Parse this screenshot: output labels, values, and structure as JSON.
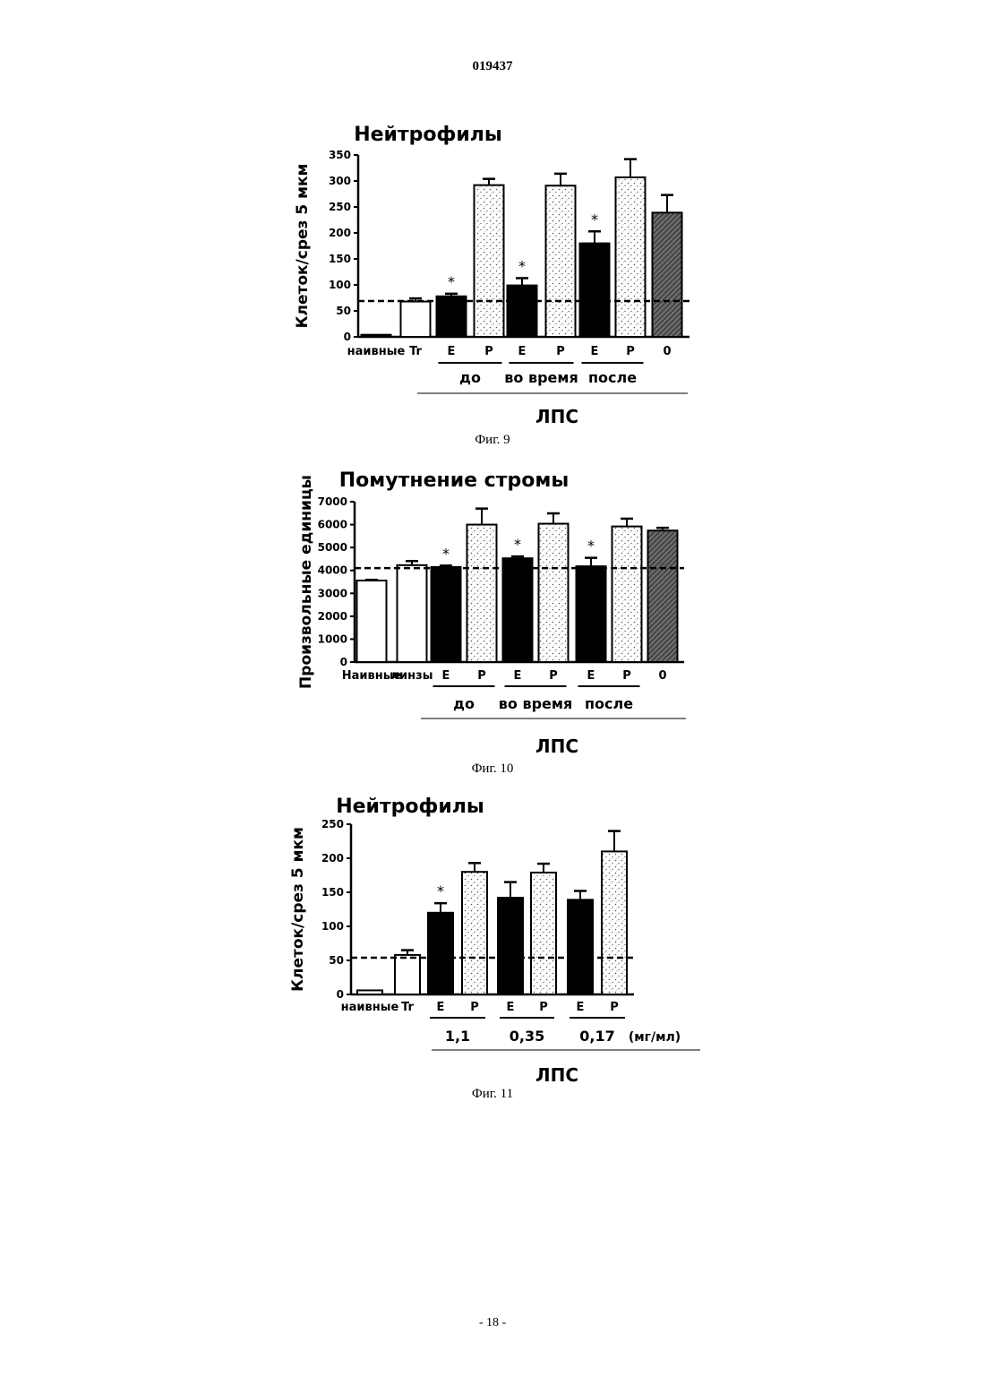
{
  "document": {
    "id": "019437",
    "page_number": "- 18 -"
  },
  "chart_data": [
    {
      "type": "bar",
      "title": "Нейтрофилы",
      "ylabel": "Клеток/срез 5 мкм",
      "caption": "Фиг. 9",
      "group_label": "ЛПС",
      "ylim": [
        0,
        350
      ],
      "yticks": [
        0,
        50,
        100,
        150,
        200,
        250,
        300,
        350
      ],
      "yticklabels": [
        "0",
        "50",
        "100",
        "150",
        "200",
        "250",
        "300",
        "350"
      ],
      "bars": [
        {
          "label": "наивные",
          "value": 4,
          "error": 0,
          "fill": "black"
        },
        {
          "label": "Tr",
          "value": 68,
          "error": 6,
          "fill": "white"
        },
        {
          "label": "E",
          "value": 78,
          "error": 5,
          "fill": "black",
          "star": true
        },
        {
          "label": "P",
          "value": 292,
          "error": 12,
          "fill": "stipple"
        },
        {
          "label": "E",
          "value": 99,
          "error": 14,
          "fill": "black",
          "star": true
        },
        {
          "label": "P",
          "value": 291,
          "error": 23,
          "fill": "stipple"
        },
        {
          "label": "E",
          "value": 180,
          "error": 23,
          "fill": "black",
          "star": true
        },
        {
          "label": "P",
          "value": 307,
          "error": 35,
          "fill": "stipple"
        },
        {
          "label": "0",
          "value": 239,
          "error": 34,
          "fill": "hatch"
        }
      ],
      "reference_line": 69,
      "groups": [
        {
          "label": "до",
          "bars": [
            2,
            3
          ]
        },
        {
          "label": "во время",
          "bars": [
            4,
            5
          ]
        },
        {
          "label": "после",
          "bars": [
            6,
            7
          ]
        }
      ]
    },
    {
      "type": "bar",
      "title": "Помутнение стромы",
      "ylabel": "Произвольные единицы",
      "caption": "Фиг. 10",
      "group_label": "ЛПС",
      "ylim": [
        0,
        7000
      ],
      "yticks": [
        0,
        1000,
        2000,
        3000,
        4000,
        5000,
        6000,
        7000
      ],
      "yticklabels": [
        "0",
        "1000",
        "2000",
        "3000",
        "4000",
        "5000",
        "6000",
        "7000"
      ],
      "bars": [
        {
          "label": "Наивные",
          "value": 3560,
          "error": 30,
          "fill": "white"
        },
        {
          "label": "линзы",
          "value": 4230,
          "error": 180,
          "fill": "white"
        },
        {
          "label": "E",
          "value": 4150,
          "error": 60,
          "fill": "black",
          "star": true
        },
        {
          "label": "P",
          "value": 6000,
          "error": 700,
          "fill": "stipple"
        },
        {
          "label": "E",
          "value": 4530,
          "error": 80,
          "fill": "black",
          "star": true
        },
        {
          "label": "P",
          "value": 6040,
          "error": 450,
          "fill": "stipple"
        },
        {
          "label": "E",
          "value": 4180,
          "error": 370,
          "fill": "black",
          "star": true
        },
        {
          "label": "P",
          "value": 5920,
          "error": 340,
          "fill": "stipple"
        },
        {
          "label": "0",
          "value": 5740,
          "error": 120,
          "fill": "hatch"
        }
      ],
      "reference_line": 4100,
      "groups": [
        {
          "label": "до",
          "bars": [
            2,
            3
          ]
        },
        {
          "label": "во время",
          "bars": [
            4,
            5
          ]
        },
        {
          "label": "после",
          "bars": [
            6,
            7
          ]
        }
      ]
    },
    {
      "type": "bar",
      "title": "Нейтрофилы",
      "ylabel": "Клеток/срез 5 мкм",
      "caption": "Фиг. 11",
      "group_label": "ЛПС",
      "ylim": [
        0,
        250
      ],
      "yticks": [
        0,
        50,
        100,
        150,
        200,
        250
      ],
      "yticklabels": [
        "0",
        "50",
        "100",
        "150",
        "200",
        "250"
      ],
      "bars": [
        {
          "label": "наивные",
          "value": 6,
          "error": 0,
          "fill": "white"
        },
        {
          "label": "Tr",
          "value": 58,
          "error": 7,
          "fill": "white"
        },
        {
          "label": "E",
          "value": 120,
          "error": 14,
          "fill": "black",
          "star": true
        },
        {
          "label": "P",
          "value": 180,
          "error": 13,
          "fill": "stipple"
        },
        {
          "label": "E",
          "value": 142,
          "error": 23,
          "fill": "black"
        },
        {
          "label": "P",
          "value": 179,
          "error": 13,
          "fill": "stipple"
        },
        {
          "label": "E",
          "value": 139,
          "error": 13,
          "fill": "black"
        },
        {
          "label": "P",
          "value": 210,
          "error": 30,
          "fill": "stipple"
        }
      ],
      "reference_line": 54,
      "groups": [
        {
          "label": "1,1",
          "bars": [
            2,
            3
          ]
        },
        {
          "label": "0,35",
          "bars": [
            4,
            5
          ]
        },
        {
          "label": "0,17",
          "bars": [
            6,
            7
          ]
        }
      ],
      "group_unit": "(мг/мл)"
    }
  ]
}
